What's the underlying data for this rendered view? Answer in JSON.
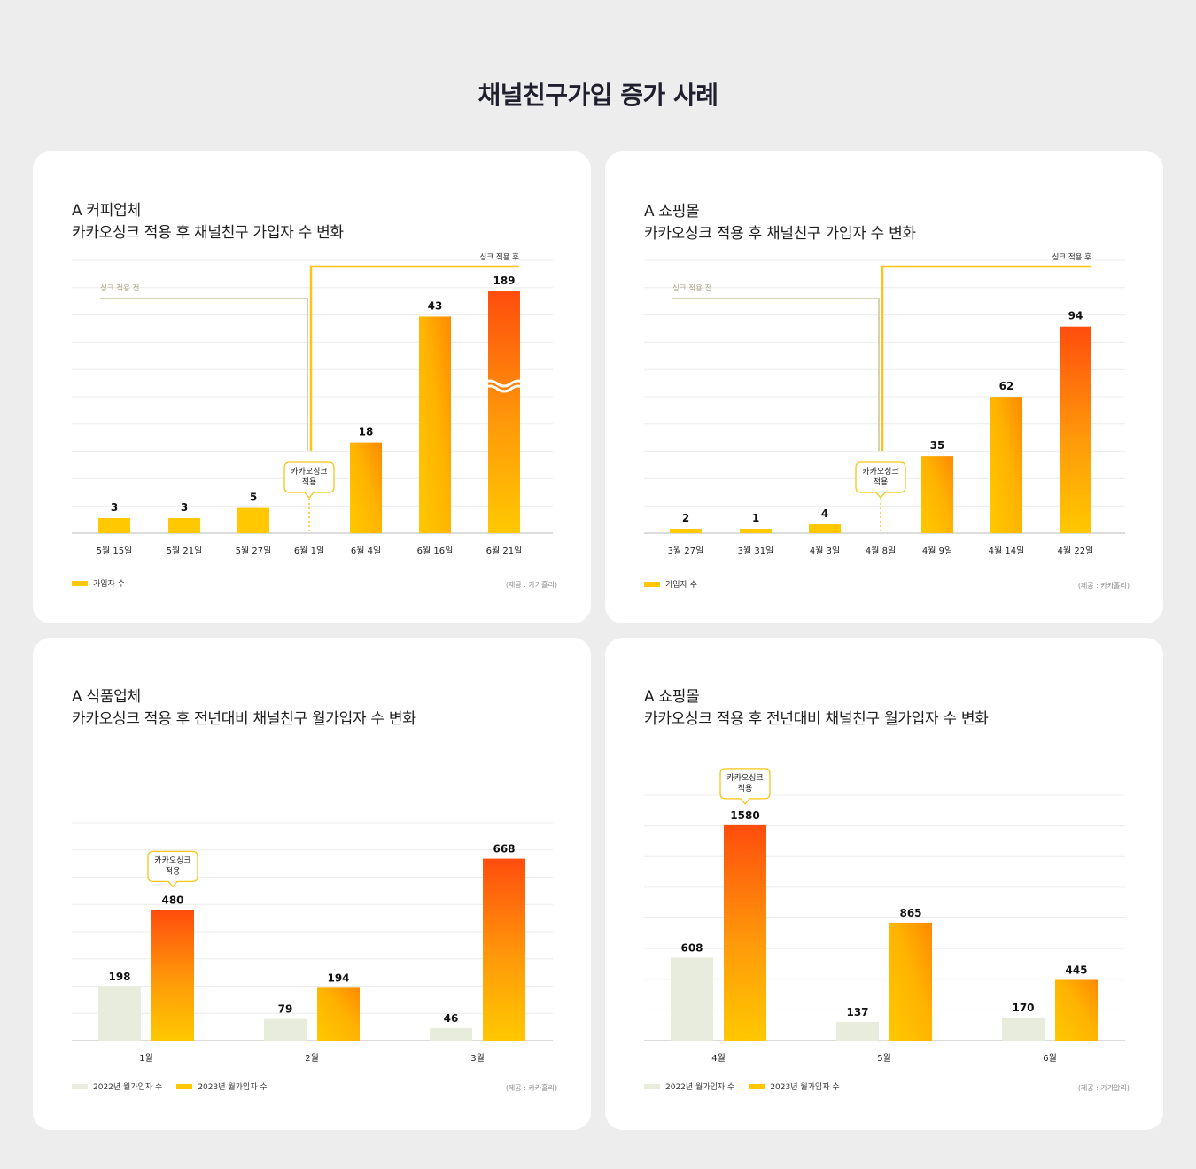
{
  "page": {
    "title": "채널친구가입 증가 사례"
  },
  "colors": {
    "bar_2023_top": "#ff4d0d",
    "bar_2023_bottom": "#ffc800",
    "bar_2022": "#e8ecdc",
    "before_line": "#d7d2b6",
    "after_line": "#ffc21a",
    "callout_border": "#f5c518"
  },
  "cards": [
    {
      "brand": "A 커피업체",
      "subtitle": "카카오싱크 적용 후 채널친구 가입자 수 변화",
      "before_label": "싱크 적용 전",
      "after_label": "싱크 적용 후",
      "callout": "카카오싱크\n적용",
      "legend": [
        "가입자 수"
      ],
      "source": "(제공 : 카카홀리)"
    },
    {
      "brand": "A 쇼핑몰",
      "subtitle": "카카오싱크 적용 후 채널친구 가입자 수 변화",
      "before_label": "싱크 적용 전",
      "after_label": "싱크 적용 후",
      "callout": "카카오싱크\n적용",
      "legend": [
        "가입자 수"
      ],
      "source": "(제공 : 카카홀리)"
    },
    {
      "brand": "A 식품업체",
      "subtitle": "카카오싱크 적용 후 전년대비 채널친구 월가입자 수 변화",
      "callout": "카카오싱크\n적용",
      "legend": [
        "2022년 월가입자 수",
        "2023년 월가입자 수"
      ],
      "source": "(제공 : 카카홀리)"
    },
    {
      "brand": "A 쇼핑몰",
      "subtitle": "카카오싱크 적용 후 전년대비 채널친구 월가입자 수 변화",
      "callout": "카카오싱크\n적용",
      "legend": [
        "2022년 월가입자 수",
        "2023년 월가입자 수"
      ],
      "source": "(제공 : 가가알리)"
    }
  ],
  "chart_data": [
    {
      "type": "bar",
      "categories": [
        "5월 15일",
        "5월 21일",
        "5월 27일",
        "6월 1일",
        "6월 4일",
        "6월 16일",
        "6월 21일"
      ],
      "series": [
        {
          "name": "가입자 수",
          "values": [
            3,
            3,
            5,
            null,
            18,
            43,
            189
          ]
        }
      ],
      "marker_category": "6월 1일",
      "axis_break_on": "6월 21일",
      "grid": true
    },
    {
      "type": "bar",
      "categories": [
        "3월 27일",
        "3월 31일",
        "4월 3일",
        "4월 8일",
        "4월 9일",
        "4월 14일",
        "4월 22일"
      ],
      "series": [
        {
          "name": "가입자 수",
          "values": [
            2,
            1,
            4,
            null,
            35,
            62,
            94
          ]
        }
      ],
      "marker_category": "4월 8일",
      "grid": true
    },
    {
      "type": "bar",
      "categories": [
        "1월",
        "2월",
        "3월"
      ],
      "series": [
        {
          "name": "2022년 월가입자 수",
          "values": [
            198,
            79,
            46
          ]
        },
        {
          "name": "2023년 월가입자 수",
          "values": [
            480,
            194,
            668
          ]
        }
      ],
      "callout_category": "1월",
      "grid": true
    },
    {
      "type": "bar",
      "categories": [
        "4월",
        "5월",
        "6월"
      ],
      "series": [
        {
          "name": "2022년 월가입자 수",
          "values": [
            608,
            137,
            170
          ]
        },
        {
          "name": "2023년 월가입자 수",
          "values": [
            1580,
            865,
            445
          ]
        }
      ],
      "callout_category": "4월",
      "grid": true
    }
  ]
}
